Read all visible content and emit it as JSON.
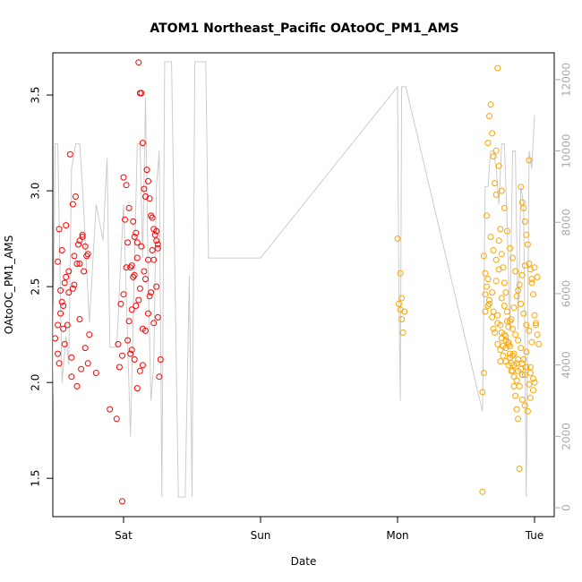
{
  "chart_data": {
    "type": "scatter",
    "title": "ATOM1 Northeast_Pacific OAtoOC_PM1_AMS",
    "xlabel": "Date",
    "ylabel": "OAtoOC_PM1_AMS",
    "x_ticks": [
      "Sat",
      "Sun",
      "Mon",
      "Tue"
    ],
    "ylim": [
      1.3,
      3.72
    ],
    "y_ticks": [
      "1.5",
      "2.0",
      "2.5",
      "3.0",
      "3.5"
    ],
    "y2lim": [
      -250,
      12750
    ],
    "y2_ticks": [
      "0",
      "2000",
      "4000",
      "6000",
      "8000",
      "10000",
      "12000"
    ],
    "grid": false,
    "series": [
      {
        "color": "#ff0000",
        "x": [
          0.5,
          0.52,
          0.53,
          0.52,
          0.55,
          0.54,
          0.56,
          0.57,
          0.6,
          0.62,
          0.64,
          0.66,
          0.68,
          0.7,
          0.72,
          0.74,
          0.52,
          0.55,
          0.58,
          0.61,
          0.63,
          0.65,
          0.68,
          0.71,
          0.73,
          0.53,
          0.56,
          0.59,
          0.62,
          0.66,
          0.69,
          0.72,
          0.75,
          0.54,
          0.57,
          0.6,
          0.64,
          0.67,
          0.7,
          0.58,
          0.63,
          0.68,
          0.74,
          0.8,
          0.9,
          0.95,
          0.97,
          0.99,
          1.0,
          1.02,
          1.03,
          1.05,
          1.06,
          1.07,
          1.08,
          1.09,
          1.1,
          1.11,
          1.12,
          1.13,
          1.14,
          1.15,
          1.16,
          1.17,
          1.18,
          1.19,
          1.2,
          1.21,
          1.22,
          1.23,
          1.24,
          1.25,
          0.98,
          1.0,
          1.02,
          1.04,
          1.06,
          1.08,
          1.1,
          1.12,
          1.14,
          1.16,
          1.18,
          1.2,
          1.22,
          1.24,
          1.01,
          1.04,
          1.07,
          1.1,
          1.13,
          1.16,
          1.19,
          1.22,
          1.25,
          1.03,
          1.06,
          1.09,
          1.12,
          1.15,
          1.18,
          1.21,
          1.24,
          1.05,
          1.08,
          1.11,
          1.14,
          0.96,
          0.99,
          1.26,
          1.27,
          1.25
        ],
        "y": [
          2.23,
          2.3,
          2.1,
          2.15,
          2.42,
          2.36,
          2.28,
          2.2,
          2.47,
          2.13,
          2.51,
          2.62,
          2.74,
          2.77,
          2.71,
          2.67,
          2.63,
          2.69,
          2.82,
          3.19,
          2.93,
          2.97,
          2.62,
          2.58,
          2.66,
          2.8,
          2.4,
          2.3,
          2.03,
          1.98,
          2.07,
          2.18,
          2.25,
          2.48,
          2.52,
          2.58,
          2.66,
          2.72,
          2.76,
          2.55,
          2.49,
          2.33,
          2.1,
          2.05,
          1.86,
          1.81,
          2.08,
          1.38,
          3.07,
          3.03,
          2.73,
          2.15,
          2.61,
          2.55,
          2.76,
          2.78,
          2.73,
          3.67,
          3.51,
          3.51,
          3.25,
          3.01,
          2.97,
          3.11,
          3.05,
          2.96,
          2.87,
          2.86,
          2.8,
          2.77,
          2.74,
          2.7,
          2.41,
          2.46,
          2.6,
          2.32,
          2.17,
          2.12,
          1.97,
          2.06,
          2.09,
          2.27,
          2.36,
          2.47,
          2.31,
          2.5,
          2.85,
          2.91,
          2.84,
          2.65,
          2.71,
          2.54,
          2.45,
          2.64,
          2.34,
          2.22,
          2.38,
          2.4,
          2.49,
          2.58,
          2.64,
          2.69,
          2.79,
          2.6,
          2.56,
          2.43,
          2.28,
          2.2,
          2.14,
          2.03,
          2.12,
          2.72
        ]
      },
      {
        "color": "#ffa500",
        "x": [
          3.0,
          3.01,
          3.02,
          3.02,
          3.03,
          3.03,
          3.04,
          3.05,
          3.62,
          3.63,
          3.64,
          3.65,
          3.66,
          3.67,
          3.68,
          3.69,
          3.7,
          3.71,
          3.72,
          3.73,
          3.74,
          3.75,
          3.76,
          3.77,
          3.78,
          3.79,
          3.8,
          3.81,
          3.82,
          3.83,
          3.84,
          3.85,
          3.86,
          3.87,
          3.88,
          3.89,
          3.9,
          3.91,
          3.92,
          3.93,
          3.94,
          3.95,
          3.96,
          3.97,
          3.98,
          3.99,
          4.0,
          4.01,
          4.02,
          4.03,
          3.62,
          3.64,
          3.66,
          3.68,
          3.7,
          3.72,
          3.74,
          3.76,
          3.78,
          3.8,
          3.82,
          3.84,
          3.86,
          3.88,
          3.9,
          3.92,
          3.94,
          3.96,
          3.98,
          4.0,
          4.02,
          3.63,
          3.65,
          3.67,
          3.69,
          3.71,
          3.73,
          3.75,
          3.77,
          3.79,
          3.81,
          3.83,
          3.85,
          3.87,
          3.89,
          3.91,
          3.93,
          3.95,
          3.97,
          3.99,
          4.01,
          3.72,
          3.74,
          3.76,
          3.78,
          3.8,
          3.82,
          3.84,
          3.86,
          3.88,
          3.9,
          3.92,
          3.94,
          3.96,
          3.98,
          3.75,
          3.77,
          3.79,
          3.81,
          3.83,
          3.85,
          3.87,
          3.89,
          3.91,
          3.93,
          3.7,
          3.73,
          3.76,
          3.79,
          3.82,
          3.85,
          3.88,
          3.91,
          3.94,
          3.97,
          4.0,
          3.66,
          3.69,
          3.72,
          3.75,
          3.78,
          3.81,
          3.84,
          3.87,
          3.9,
          3.93,
          3.96,
          3.99,
          3.64,
          3.67,
          3.7,
          3.73,
          3.76,
          3.79,
          3.82,
          3.85,
          3.88,
          3.91,
          3.94,
          3.97
        ],
        "y": [
          2.75,
          2.41,
          2.38,
          2.57,
          2.44,
          2.33,
          2.26,
          2.37,
          1.43,
          2.05,
          2.57,
          2.87,
          3.25,
          3.39,
          3.45,
          3.3,
          3.18,
          3.04,
          2.98,
          3.64,
          2.74,
          2.8,
          2.67,
          2.6,
          2.52,
          2.47,
          2.32,
          2.21,
          2.15,
          2.1,
          2.06,
          1.98,
          1.93,
          1.86,
          1.81,
          1.55,
          3.02,
          2.94,
          2.91,
          2.84,
          2.77,
          2.72,
          2.62,
          2.59,
          2.52,
          2.46,
          2.35,
          2.3,
          2.25,
          2.2,
          1.95,
          2.37,
          2.54,
          2.76,
          2.69,
          2.64,
          2.59,
          2.44,
          2.4,
          2.37,
          2.32,
          2.28,
          2.25,
          2.22,
          2.18,
          2.12,
          2.08,
          3.16,
          2.54,
          2.6,
          2.55,
          2.66,
          2.5,
          2.43,
          2.34,
          2.26,
          2.2,
          2.17,
          2.14,
          2.11,
          2.09,
          2.06,
          2.03,
          2.01,
          1.98,
          1.91,
          1.88,
          1.85,
          1.92,
          2.02,
          2.31,
          3.21,
          3.13,
          3.0,
          2.91,
          2.79,
          2.7,
          2.65,
          2.58,
          2.48,
          2.41,
          2.36,
          2.3,
          2.27,
          2.21,
          2.11,
          2.19,
          2.24,
          2.29,
          2.33,
          2.39,
          2.45,
          2.51,
          2.56,
          2.61,
          2.28,
          2.35,
          2.23,
          2.18,
          2.13,
          2.09,
          2.06,
          2.04,
          2.16,
          2.08,
          2.0,
          2.4,
          2.47,
          2.53,
          2.3,
          2.25,
          2.2,
          2.14,
          2.1,
          2.07,
          2.04,
          1.99,
          1.96,
          2.46,
          2.41,
          2.37,
          2.31,
          2.26,
          2.22,
          2.19,
          2.15,
          2.12,
          2.1,
          2.08,
          2.05
        ]
      },
      {
        "color": "#cccccc",
        "type": "line",
        "axis": "right",
        "x": [
          0.45,
          0.48,
          0.5,
          0.52,
          0.55,
          0.58,
          0.6,
          0.62,
          0.65,
          0.68,
          0.7,
          0.75,
          0.8,
          0.85,
          0.88,
          0.9,
          0.95,
          1.0,
          1.05,
          1.1,
          1.12,
          1.14,
          1.16,
          1.18,
          1.2,
          1.22,
          1.24,
          1.26,
          1.28,
          1.3,
          1.35,
          1.4,
          1.42,
          1.45,
          1.48,
          1.5,
          1.52,
          1.55,
          1.58,
          1.6,
          1.62,
          1.64,
          1.66,
          1.68,
          1.7,
          1.72,
          1.74,
          1.76,
          1.78,
          1.8,
          1.82,
          1.84,
          1.86,
          1.88,
          1.9,
          1.92,
          1.94,
          1.96,
          1.98,
          2.0,
          3.0,
          3.01,
          3.02,
          3.03,
          3.04,
          3.05,
          3.06,
          3.62,
          3.64,
          3.66,
          3.68,
          3.7,
          3.72,
          3.74,
          3.76,
          3.78,
          3.8,
          3.82,
          3.84,
          3.86,
          3.88,
          3.9,
          3.92,
          3.94,
          3.96,
          3.98,
          4.0
        ],
        "y": [
          1600,
          2500,
          10200,
          10200,
          3500,
          4800,
          4000,
          9500,
          10200,
          10200,
          9000,
          5200,
          8500,
          7500,
          9800,
          4500,
          4500,
          8500,
          2000,
          10200,
          10200,
          7000,
          11500,
          6500,
          3000,
          4000,
          9000,
          10000,
          300,
          12500,
          12500,
          300,
          300,
          300,
          6500,
          300,
          12500,
          12500,
          12500,
          12500,
          7000,
          7000,
          7000,
          7000,
          7000,
          7000,
          7000,
          7000,
          7000,
          7000,
          7000,
          7000,
          7000,
          7000,
          7000,
          7000,
          7000,
          7000,
          7000,
          7000,
          11800,
          6000,
          3000,
          11800,
          11800,
          11800,
          11800,
          2700,
          9000,
          9000,
          10000,
          10000,
          9500,
          8500,
          10200,
          10200,
          8000,
          5000,
          10000,
          10000,
          5000,
          9000,
          8500,
          300,
          10000,
          9500,
          11000
        ]
      }
    ]
  }
}
